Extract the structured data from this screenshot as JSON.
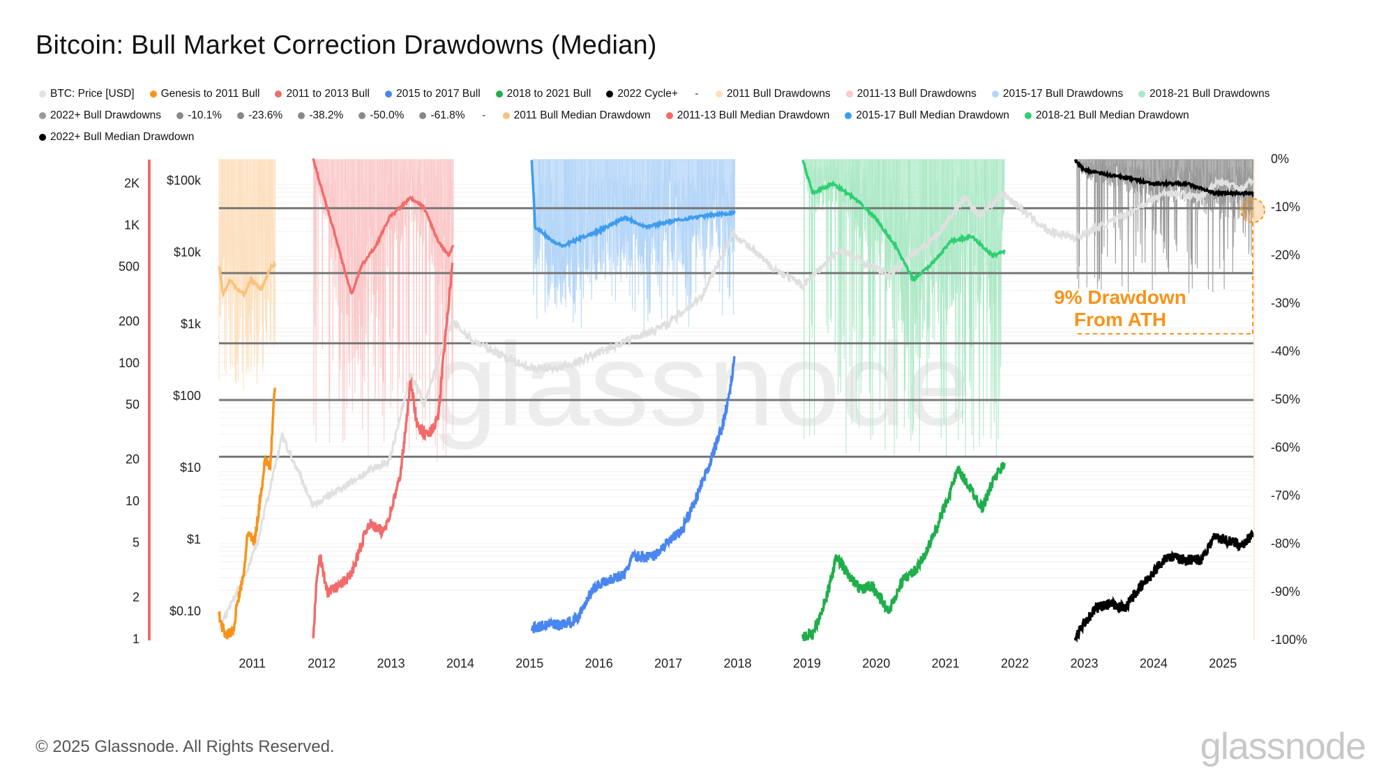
{
  "title": "Bitcoin: Bull Market Correction Drawdowns (Median)",
  "legend": [
    {
      "label": "BTC: Price [USD]",
      "color": "#e2e2e2"
    },
    {
      "label": "Genesis to 2011 Bull",
      "color": "#f7931a"
    },
    {
      "label": "2011 to 2013 Bull",
      "color": "#f26b6b"
    },
    {
      "label": "2015 to 2017 Bull",
      "color": "#4a86f0"
    },
    {
      "label": "2018 to 2021 Bull",
      "color": "#1fae4b"
    },
    {
      "label": "2022 Cycle+",
      "color": "#000000"
    },
    {
      "label": "-",
      "color": null
    },
    {
      "label": "2011 Bull Drawdowns",
      "color": "#fde0bf"
    },
    {
      "label": "2011-13 Bull Drawdowns",
      "color": "#fbc9c9"
    },
    {
      "label": "2015-17 Bull Drawdowns",
      "color": "#b5d6f8"
    },
    {
      "label": "2018-21 Bull Drawdowns",
      "color": "#aee9c7"
    },
    {
      "label": "2022+ Bull Drawdowns",
      "color": "#999999"
    },
    {
      "label": "-10.1%",
      "color": "#888888"
    },
    {
      "label": "-23.6%",
      "color": "#888888"
    },
    {
      "label": "-38.2%",
      "color": "#888888"
    },
    {
      "label": "-50.0%",
      "color": "#888888"
    },
    {
      "label": "-61.8%",
      "color": "#888888"
    },
    {
      "label": "-",
      "color": null
    },
    {
      "label": "2011 Bull Median Drawdown",
      "color": "#f9c27e"
    },
    {
      "label": "2011-13 Bull Median Drawdown",
      "color": "#f26b6b"
    },
    {
      "label": "2015-17 Bull Median Drawdown",
      "color": "#3d9cf0"
    },
    {
      "label": "2018-21 Bull Median Drawdown",
      "color": "#2fcf73"
    },
    {
      "label": "2022+ Bull Median Drawdown",
      "color": "#000000"
    }
  ],
  "chart_data": {
    "type": "line",
    "title": "Bitcoin: Bull Market Correction Drawdowns (Median)",
    "x_ticks": [
      "2011",
      "2012",
      "2013",
      "2014",
      "2015",
      "2016",
      "2017",
      "2018",
      "2019",
      "2020",
      "2021",
      "2022",
      "2023",
      "2024",
      "2025"
    ],
    "xlim": [
      2010.54,
      2025.46
    ],
    "multiple_axis": {
      "ticks": [
        "2K",
        "1K",
        "500",
        "200",
        "100",
        "50",
        "20",
        "10",
        "5",
        "2",
        "1"
      ],
      "values": [
        2000,
        1000,
        500,
        200,
        100,
        50,
        20,
        10,
        5,
        2,
        1
      ],
      "scale": "log"
    },
    "price_axis": {
      "ticks": [
        "$100k",
        "$10k",
        "$1k",
        "$100",
        "$10",
        "$1",
        "$0.10"
      ],
      "values": [
        100000,
        10000,
        1000,
        100,
        10,
        1,
        0.1
      ],
      "scale": "log"
    },
    "drawdown_axis": {
      "ticks": [
        "0%",
        "-10%",
        "-20%",
        "-30%",
        "-40%",
        "-50%",
        "-60%",
        "-70%",
        "-80%",
        "-90%",
        "-100%"
      ],
      "values": [
        0,
        -10,
        -20,
        -30,
        -40,
        -50,
        -60,
        -70,
        -80,
        -90,
        -100
      ]
    },
    "fib_levels": [
      -10.1,
      -23.6,
      -38.2,
      -50.0,
      -61.8
    ],
    "btc_price": [
      [
        2010.55,
        0.06
      ],
      [
        2010.9,
        0.3
      ],
      [
        2011.1,
        1
      ],
      [
        2011.45,
        28
      ],
      [
        2011.9,
        3
      ],
      [
        2012.5,
        7
      ],
      [
        2013.0,
        13
      ],
      [
        2013.3,
        200
      ],
      [
        2013.5,
        80
      ],
      [
        2013.9,
        1100
      ],
      [
        2014.2,
        600
      ],
      [
        2015.0,
        250
      ],
      [
        2015.5,
        250
      ],
      [
        2016.0,
        400
      ],
      [
        2016.5,
        650
      ],
      [
        2017.0,
        1000
      ],
      [
        2017.5,
        2500
      ],
      [
        2017.96,
        19000
      ],
      [
        2018.5,
        6500
      ],
      [
        2018.95,
        3500
      ],
      [
        2019.5,
        11000
      ],
      [
        2020.2,
        5000
      ],
      [
        2020.9,
        18000
      ],
      [
        2021.3,
        60000
      ],
      [
        2021.5,
        33000
      ],
      [
        2021.85,
        67000
      ],
      [
        2022.5,
        20000
      ],
      [
        2022.9,
        16500
      ],
      [
        2023.5,
        30000
      ],
      [
        2024.2,
        70000
      ],
      [
        2024.7,
        60000
      ],
      [
        2024.95,
        100000
      ],
      [
        2025.3,
        80000
      ],
      [
        2025.45,
        107000
      ]
    ],
    "cycles": [
      {
        "name": "Genesis to 2011 Bull",
        "color": "#f7931a",
        "shade": "#fde0bf",
        "median_color": "#f9c27e",
        "max_drawdown": -48,
        "multiple": [
          [
            2010.54,
            1.5
          ],
          [
            2010.62,
            1.1
          ],
          [
            2010.75,
            1.15
          ],
          [
            2010.8,
            1.8
          ],
          [
            2010.9,
            3
          ],
          [
            2010.95,
            6
          ],
          [
            2011.05,
            5
          ],
          [
            2011.15,
            12
          ],
          [
            2011.2,
            20
          ],
          [
            2011.28,
            18
          ],
          [
            2011.33,
            50
          ],
          [
            2011.35,
            70
          ]
        ],
        "median_drawdown": [
          [
            2010.54,
            -22
          ],
          [
            2010.6,
            -28
          ],
          [
            2010.7,
            -25
          ],
          [
            2010.8,
            -27
          ],
          [
            2010.9,
            -28
          ],
          [
            2011.0,
            -25
          ],
          [
            2011.15,
            -27
          ],
          [
            2011.3,
            -22
          ],
          [
            2011.35,
            -22
          ]
        ]
      },
      {
        "name": "2011 to 2013 Bull",
        "color": "#f26b6b",
        "shade": "#fbc9c9",
        "median_color": "#f26b6b",
        "max_drawdown": -64,
        "multiple": [
          [
            2011.9,
            1
          ],
          [
            2011.95,
            3
          ],
          [
            2012.0,
            4
          ],
          [
            2012.1,
            2.2
          ],
          [
            2012.3,
            2.5
          ],
          [
            2012.45,
            3
          ],
          [
            2012.6,
            5
          ],
          [
            2012.7,
            7
          ],
          [
            2012.9,
            6
          ],
          [
            2013.0,
            8
          ],
          [
            2013.15,
            15
          ],
          [
            2013.25,
            40
          ],
          [
            2013.3,
            80
          ],
          [
            2013.4,
            35
          ],
          [
            2013.55,
            30
          ],
          [
            2013.7,
            40
          ],
          [
            2013.8,
            150
          ],
          [
            2013.92,
            600
          ]
        ],
        "median_drawdown": [
          [
            2011.9,
            0
          ],
          [
            2012.0,
            -5
          ],
          [
            2012.2,
            -15
          ],
          [
            2012.45,
            -28
          ],
          [
            2012.6,
            -22
          ],
          [
            2012.8,
            -18
          ],
          [
            2013.0,
            -12
          ],
          [
            2013.3,
            -8
          ],
          [
            2013.5,
            -10
          ],
          [
            2013.7,
            -17
          ],
          [
            2013.85,
            -20
          ],
          [
            2013.92,
            -18
          ]
        ]
      },
      {
        "name": "2015 to 2017 Bull",
        "color": "#4a86f0",
        "shade": "#b5d6f8",
        "median_color": "#3d9cf0",
        "max_drawdown": -36,
        "multiple": [
          [
            2015.05,
            1.2
          ],
          [
            2015.3,
            1.3
          ],
          [
            2015.5,
            1.3
          ],
          [
            2015.7,
            1.4
          ],
          [
            2015.85,
            2
          ],
          [
            2016.0,
            2.5
          ],
          [
            2016.4,
            3
          ],
          [
            2016.5,
            4
          ],
          [
            2016.8,
            4
          ],
          [
            2017.0,
            5
          ],
          [
            2017.2,
            6
          ],
          [
            2017.4,
            10
          ],
          [
            2017.6,
            18
          ],
          [
            2017.8,
            35
          ],
          [
            2017.9,
            60
          ],
          [
            2017.98,
            110
          ]
        ],
        "median_drawdown": [
          [
            2015.05,
            0
          ],
          [
            2015.1,
            -14
          ],
          [
            2015.2,
            -15
          ],
          [
            2015.35,
            -17
          ],
          [
            2015.5,
            -18
          ],
          [
            2015.8,
            -16
          ],
          [
            2016.0,
            -15
          ],
          [
            2016.4,
            -12
          ],
          [
            2016.7,
            -14
          ],
          [
            2017.0,
            -13
          ],
          [
            2017.4,
            -12
          ],
          [
            2017.98,
            -11
          ]
        ]
      },
      {
        "name": "2018 to 2021 Bull",
        "color": "#1fae4b",
        "shade": "#aee9c7",
        "median_color": "#2fcf73",
        "max_drawdown": -62,
        "multiple": [
          [
            2018.96,
            1.05
          ],
          [
            2019.1,
            1.1
          ],
          [
            2019.3,
            2
          ],
          [
            2019.45,
            4
          ],
          [
            2019.6,
            3
          ],
          [
            2019.8,
            2.3
          ],
          [
            2019.95,
            2.5
          ],
          [
            2020.2,
            1.6
          ],
          [
            2020.4,
            2.7
          ],
          [
            2020.6,
            3.2
          ],
          [
            2020.8,
            5
          ],
          [
            2021.0,
            9
          ],
          [
            2021.2,
            17
          ],
          [
            2021.4,
            12
          ],
          [
            2021.55,
            9
          ],
          [
            2021.7,
            14
          ],
          [
            2021.87,
            19
          ]
        ],
        "median_drawdown": [
          [
            2018.96,
            0
          ],
          [
            2019.1,
            -7
          ],
          [
            2019.4,
            -5
          ],
          [
            2019.7,
            -8
          ],
          [
            2020.0,
            -12
          ],
          [
            2020.3,
            -18
          ],
          [
            2020.55,
            -25
          ],
          [
            2020.8,
            -22
          ],
          [
            2021.1,
            -17
          ],
          [
            2021.4,
            -16
          ],
          [
            2021.7,
            -20
          ],
          [
            2021.87,
            -19
          ]
        ]
      },
      {
        "name": "2022 Cycle+",
        "color": "#000000",
        "shade": "#999999",
        "median_color": "#000000",
        "max_drawdown": -28,
        "multiple": [
          [
            2022.89,
            1.0
          ],
          [
            2023.0,
            1.3
          ],
          [
            2023.2,
            1.7
          ],
          [
            2023.4,
            1.8
          ],
          [
            2023.6,
            1.7
          ],
          [
            2023.8,
            2.3
          ],
          [
            2024.0,
            3.0
          ],
          [
            2024.2,
            4.0
          ],
          [
            2024.5,
            3.8
          ],
          [
            2024.7,
            3.8
          ],
          [
            2024.9,
            5.6
          ],
          [
            2025.2,
            5.0
          ],
          [
            2025.3,
            4.8
          ],
          [
            2025.46,
            6.0
          ]
        ],
        "median_drawdown": [
          [
            2022.89,
            0
          ],
          [
            2023.0,
            -2
          ],
          [
            2023.3,
            -3
          ],
          [
            2023.7,
            -4
          ],
          [
            2024.0,
            -5
          ],
          [
            2024.5,
            -5
          ],
          [
            2024.9,
            -7
          ],
          [
            2025.2,
            -7
          ],
          [
            2025.46,
            -7
          ]
        ]
      }
    ],
    "annotation": {
      "line1": "9% Drawdown",
      "line2": "From ATH",
      "value": -9,
      "color": "#f7931a"
    },
    "watermark": "glassnode"
  },
  "footer": "© 2025 Glassnode. All Rights Reserved.",
  "logo": "glassnode"
}
